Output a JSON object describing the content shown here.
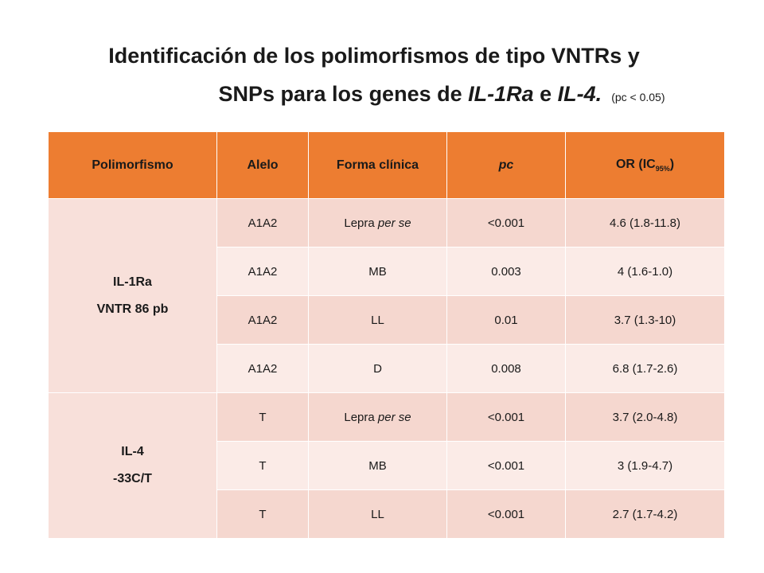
{
  "title": {
    "line1": "Identificación de los polimorfismos de tipo VNTRs y",
    "line2_pre": "SNPs para los genes de ",
    "gene1": "IL-1Ra",
    "conj": " e ",
    "gene2": "IL-4.",
    "note": "(pc < 0.05)"
  },
  "headers": {
    "polimorfismo": "Polimorfismo",
    "alelo": "Alelo",
    "forma": "Forma clínica",
    "pc": "pc",
    "or_main": "OR (IC",
    "or_sub": "95%",
    "or_close": ")"
  },
  "groups": [
    {
      "name": "IL-1Ra",
      "detail": "VNTR 86 pb",
      "rows": [
        {
          "alelo": "A1A2",
          "forma": "Lepra ",
          "forma_em": "per se",
          "pc": "<0.001",
          "or": "4.6 (1.8-11.8)"
        },
        {
          "alelo": "A1A2",
          "forma": "MB",
          "forma_em": "",
          "pc": "0.003",
          "or": "4 (1.6-1.0)"
        },
        {
          "alelo": "A1A2",
          "forma": "LL",
          "forma_em": "",
          "pc": "0.01",
          "or": "3.7 (1.3-10)"
        },
        {
          "alelo": "A1A2",
          "forma": "D",
          "forma_em": "",
          "pc": "0.008",
          "or": "6.8 (1.7-2.6)"
        }
      ]
    },
    {
      "name": "IL-4",
      "detail": "-33C/T",
      "rows": [
        {
          "alelo": "T",
          "forma": "Lepra ",
          "forma_em": "per se",
          "pc": "<0.001",
          "or": "3.7 (2.0-4.8)"
        },
        {
          "alelo": "T",
          "forma": "MB",
          "forma_em": "",
          "pc": "<0.001",
          "or": "3 (1.9-4.7)"
        },
        {
          "alelo": "T",
          "forma": "LL",
          "forma_em": "",
          "pc": "<0.001",
          "or": "2.7 (1.7-4.2)"
        }
      ]
    }
  ]
}
